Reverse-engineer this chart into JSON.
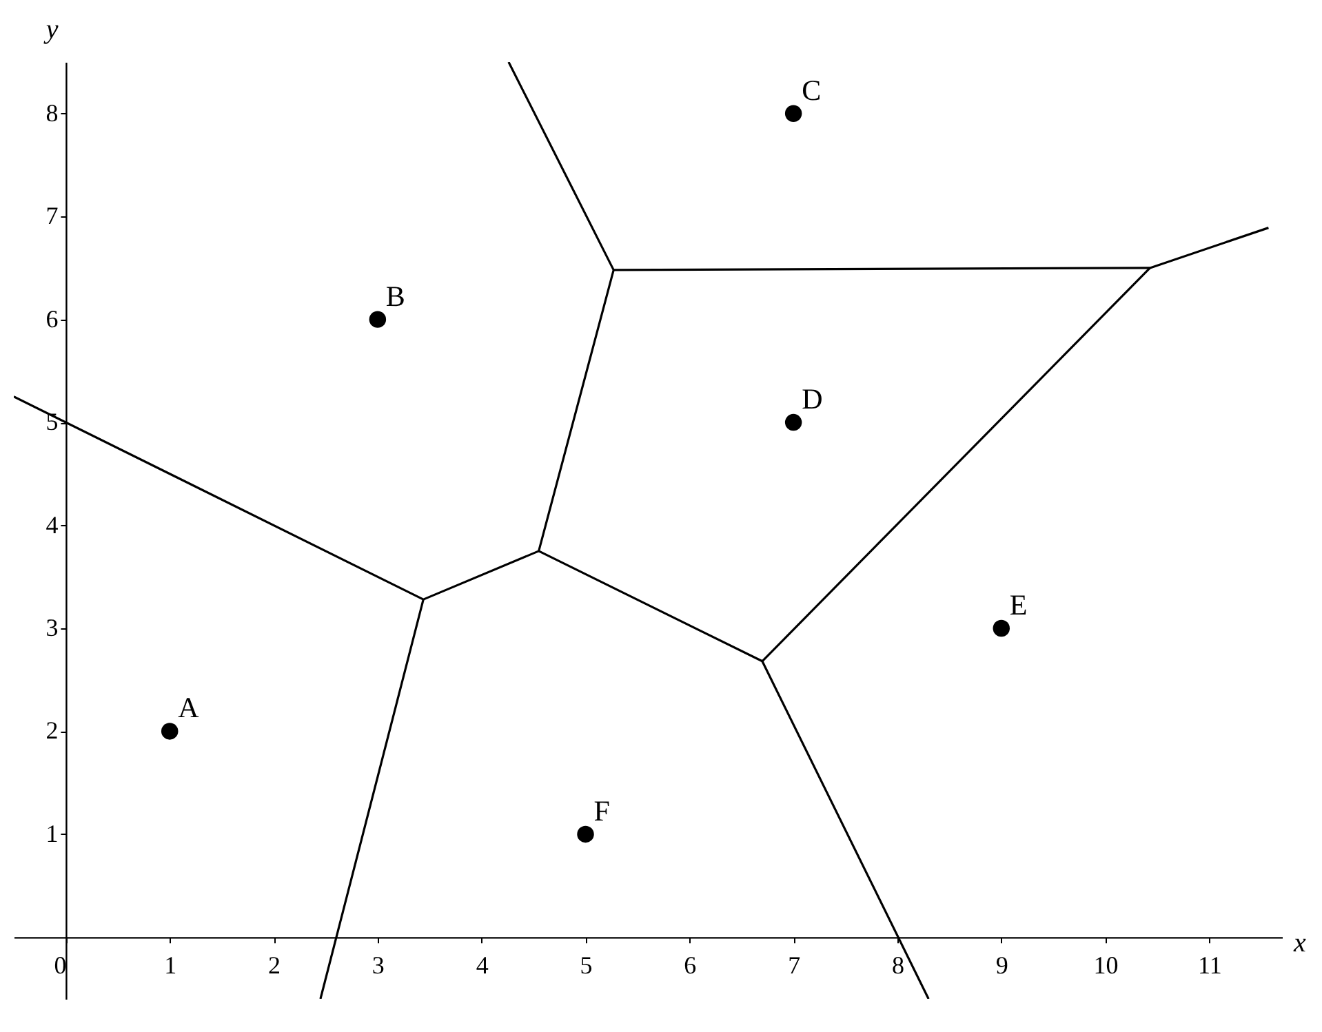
{
  "chart_data": {
    "type": "scatter",
    "xlabel": "x",
    "ylabel": "y",
    "xlim": [
      -0.5,
      11.7
    ],
    "ylim": [
      -0.6,
      8.5
    ],
    "xticks": [
      0,
      1,
      2,
      3,
      4,
      5,
      6,
      7,
      8,
      9,
      10,
      11
    ],
    "yticks": [
      1,
      2,
      3,
      4,
      5,
      6,
      7,
      8
    ],
    "series": [
      {
        "color": "#000000",
        "marker": "circle",
        "x": [
          1,
          3,
          7,
          7,
          9,
          5
        ],
        "values": [
          2,
          6,
          8,
          5,
          3,
          1
        ]
      },
      {
        "type": "line",
        "color": "#000000",
        "x": [
          -0.5,
          3.44,
          4.55,
          5.27,
          4.26
        ],
        "values": [
          5.25,
          3.28,
          3.75,
          6.48,
          8.5
        ]
      },
      {
        "type": "line",
        "color": "#000000",
        "x": [
          3.44,
          2.45
        ],
        "values": [
          3.28,
          -0.6
        ]
      },
      {
        "type": "line",
        "color": "#000000",
        "x": [
          5.27,
          10.43,
          11.57
        ],
        "values": [
          6.48,
          6.5,
          6.89
        ]
      },
      {
        "type": "line",
        "color": "#000000",
        "x": [
          4.55,
          6.7,
          10.43
        ],
        "values": [
          3.75,
          2.68,
          6.5
        ]
      },
      {
        "type": "line",
        "color": "#000000",
        "x": [
          6.7,
          8.3
        ],
        "values": [
          2.68,
          -0.6
        ]
      }
    ],
    "annotations": [
      {
        "text": "A",
        "x": 1,
        "y": 2
      },
      {
        "text": "B",
        "x": 3,
        "y": 6
      },
      {
        "text": "C",
        "x": 7,
        "y": 8
      },
      {
        "text": "D",
        "x": 7,
        "y": 5
      },
      {
        "text": "E",
        "x": 9,
        "y": 3
      },
      {
        "text": "F",
        "x": 5,
        "y": 1
      }
    ]
  }
}
